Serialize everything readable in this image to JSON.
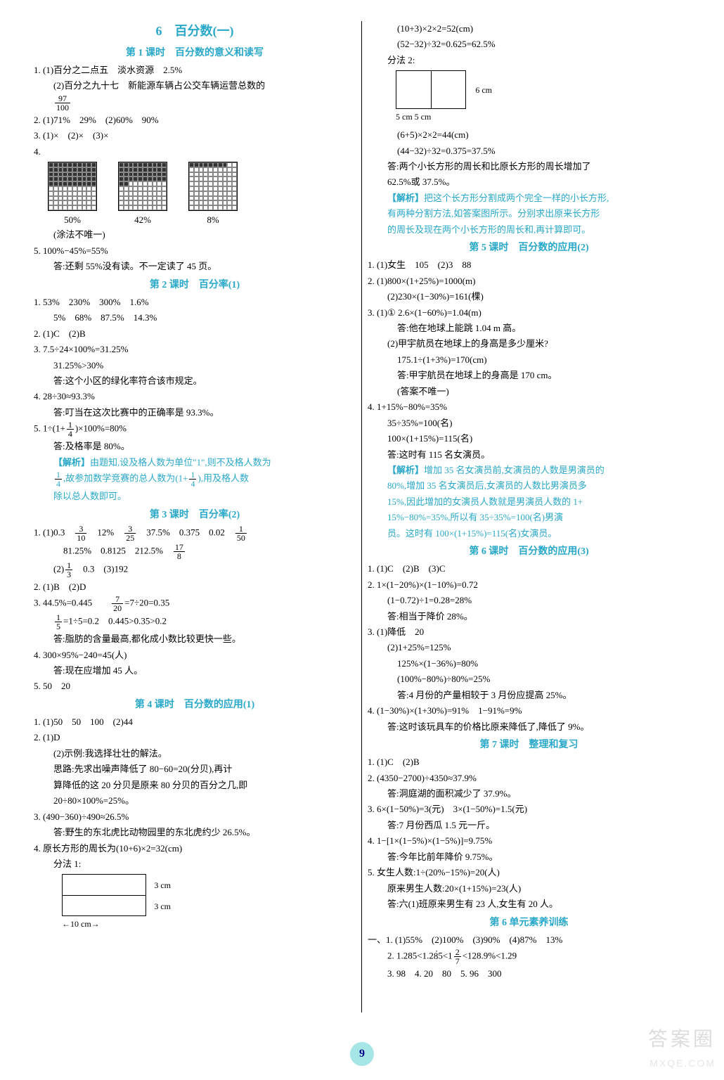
{
  "unit_title": "6　百分数(一)",
  "page_number": "9",
  "watermark": {
    "line1": "答案圈",
    "line2": "MXQE.COM"
  },
  "left": {
    "lesson1": {
      "title": "第 1 课时　百分数的意义和读写",
      "q1a": "1. (1)百分之二点五　淡水资源　2.5%",
      "q1b": "(2)百分之九十七　新能源车辆占公交车辆运营总数的",
      "q1b_frac_n": "97",
      "q1b_frac_d": "100",
      "q2": "2. (1)71%　29%　(2)60%　90%",
      "q3": "3. (1)×　(2)×　(3)×",
      "q4": "4.",
      "q4_labels": [
        "50%",
        "42%",
        "8%"
      ],
      "q4_note": "(涂法不唯一)",
      "q5a": "5. 100%−45%=55%",
      "q5b": "答:还剩 55%没有读。不一定读了 45 页。"
    },
    "lesson2": {
      "title": "第 2 课时　百分率(1)",
      "q1a": "1. 53%　230%　300%　1.6%",
      "q1b": "5%　68%　87.5%　14.3%",
      "q2": "2. (1)C　(2)B",
      "q3a": "3. 7.5÷24×100%=31.25%",
      "q3b": "31.25%>30%",
      "q3c": "答:这个小区的绿化率符合该市规定。",
      "q4a": "4. 28÷30≈93.3%",
      "q4b": "答:叮当在这次比赛中的正确率是 93.3%。",
      "q5a_pre": "5. 1÷",
      "q5a_mid": "×100%=80%",
      "q5_frac_n": "1",
      "q5_frac_d": "4",
      "q5b": "答:及格率是 80%。",
      "anal_label": "【解析】",
      "anal1": "由题知,设及格人数为单位\"1\",则不及格人数为",
      "anal2_pre": "",
      "anal2_mid": ",故参加数学竞赛的总人数为",
      "anal2_post": ",用及格人数",
      "anal3": "除以总人数即可。"
    },
    "lesson3": {
      "title": "第 3 课时　百分率(2)",
      "q1a_pre": "1. (1)0.3　",
      "f1n": "3",
      "f1d": "10",
      "q1a_mid1": "　12%　",
      "f2n": "3",
      "f2d": "25",
      "q1a_mid2": "　37.5%　0.375　0.02　",
      "f3n": "1",
      "f3d": "50",
      "q1b_pre": "81.25%　0.8125　212.5%　",
      "f4n": "17",
      "f4d": "8",
      "q1c_pre": "(2)",
      "f5n": "1",
      "f5d": "3",
      "q1c_post": "　0.3　(3)192",
      "q2": "2. (1)B　(2)D",
      "q3a_pre": "3. 44.5%=0.445　　",
      "f6n": "7",
      "f6d": "20",
      "q3a_post": "=7÷20=0.35",
      "q3b_pre": "",
      "f7n": "1",
      "f7d": "5",
      "q3b_post": "=1÷5=0.2　0.445>0.35>0.2",
      "q3c": "答:脂肪的含量最高,都化成小数比较更快一些。",
      "q4a": "4. 300×95%−240=45(人)",
      "q4b": "答:现在应增加 45 人。",
      "q5": "5. 50　20"
    },
    "lesson4": {
      "title": "第 4 课时　百分数的应用(1)",
      "q1": "1. (1)50　50　100　(2)44",
      "q2a": "2. (1)D",
      "q2b": "(2)示例:我选择壮壮的解法。",
      "q2c": "思路:先求出噪声降低了 80−60=20(分贝),再计",
      "q2d": "算降低的这 20 分贝是原来 80 分贝的百分之几,即",
      "q2e": "20÷80×100%=25%。",
      "q3a": "3. (490−360)÷490≈26.5%",
      "q3b": "答:野生的东北虎比动物园里的东北虎约少 26.5%。",
      "q4a": "4. 原长方形的周长为(10+6)×2=32(cm)",
      "q4b": "分法 1:",
      "d1_r1": "3 cm",
      "d1_r2": "3 cm",
      "d1_b": "10 cm"
    }
  },
  "right": {
    "top": {
      "l1": "(10+3)×2×2=52(cm)",
      "l2": "(52−32)÷32=0.625=62.5%",
      "l3": "分法 2:",
      "d2_r": "6 cm",
      "d2_b": "5 cm 5 cm",
      "l4": "(6+5)×2×2=44(cm)",
      "l5": "(44−32)÷32=0.375=37.5%",
      "l6": "答:两个小长方形的周长和比原长方形的周长增加了",
      "l7": "62.5%或 37.5%。",
      "anal_label": "【解析】",
      "a1": "把这个长方形分割成两个完全一样的小长方形,",
      "a2": "有两种分割方法,如答案图所示。分别求出原来长方形",
      "a3": "的周长及现在两个小长方形的周长和,再计算即可。"
    },
    "lesson5": {
      "title": "第 5 课时　百分数的应用(2)",
      "q1": "1. (1)女生　105　(2)3　88",
      "q2a": "2. (1)800×(1+25%)=1000(m)",
      "q2b": "(2)230×(1−30%)=161(棵)",
      "q3a": "3. (1)① 2.6×(1−60%)=1.04(m)",
      "q3b": "答:他在地球上能跳 1.04 m 高。",
      "q3c": "(2)甲宇航员在地球上的身高是多少厘米?",
      "q3d": "175.1÷(1+3%)=170(cm)",
      "q3e": "答:甲宇航员在地球上的身高是 170 cm。",
      "q3f": "(答案不唯一)",
      "q4a": "4. 1+15%−80%=35%",
      "q4b": "35÷35%=100(名)",
      "q4c": "100×(1+15%)=115(名)",
      "q4d": "答:这时有 115 名女演员。",
      "anal_label": "【解析】",
      "a1": "增加 35 名女演员前,女演员的人数是男演员的",
      "a2": "80%,增加 35 名女演员后,女演员的人数比男演员多",
      "a3": "15%,因此增加的女演员人数就是男演员人数的 1+",
      "a4": "15%−80%=35%,所以有 35÷35%=100(名)男演",
      "a5": "员。这时有 100×(1+15%)=115(名)女演员。"
    },
    "lesson6": {
      "title": "第 6 课时　百分数的应用(3)",
      "q1": "1. (1)C　(2)B　(3)C",
      "q2a": "2. 1×(1−20%)×(1−10%)=0.72",
      "q2b": "(1−0.72)÷1=0.28=28%",
      "q2c": "答:相当于降价 28%。",
      "q3a": "3. (1)降低　20",
      "q3b": "(2)1+25%=125%",
      "q3c": "125%×(1−36%)=80%",
      "q3d": "(100%−80%)÷80%=25%",
      "q3e": "答:4 月份的产量相较于 3 月份应提高 25%。",
      "q4a": "4. (1−30%)×(1+30%)=91%　1−91%=9%",
      "q4b": "答:这时该玩具车的价格比原来降低了,降低了 9%。"
    },
    "lesson7": {
      "title": "第 7 课时　整理和复习",
      "q1": "1. (1)C　(2)B",
      "q2a": "2. (4350−2700)÷4350≈37.9%",
      "q2b": "答:洞庭湖的面积减少了 37.9%。",
      "q3a": "3. 6×(1−50%)=3(元)　3×(1−50%)=1.5(元)",
      "q3b": "答:7 月份西瓜 1.5 元一斤。",
      "q4a": "4. 1−[1×(1−5%)×(1−5%)]=9.75%",
      "q4b": "答:今年比前年降价 9.75%。",
      "q5a": "5. 女生人数:1÷(20%−15%)=20(人)",
      "q5b": "原来男生人数:20×(1+15%)=23(人)",
      "q5c": "答:六(1)班原来男生有 23 人,女生有 20 人。"
    },
    "train": {
      "title": "第 6 单元素养训练",
      "l1": "一、1. (1)55%　(2)100%　(3)90%　(4)87%　13%",
      "l2pre": "2. 1.285<1.2",
      "l2dot": "8",
      "l2mid": "5<1",
      "f_n": "2",
      "f_d": "7",
      "l2post": "<128.9%<1.29",
      "l3": "3. 98　4. 20　80　5. 96　300"
    }
  }
}
